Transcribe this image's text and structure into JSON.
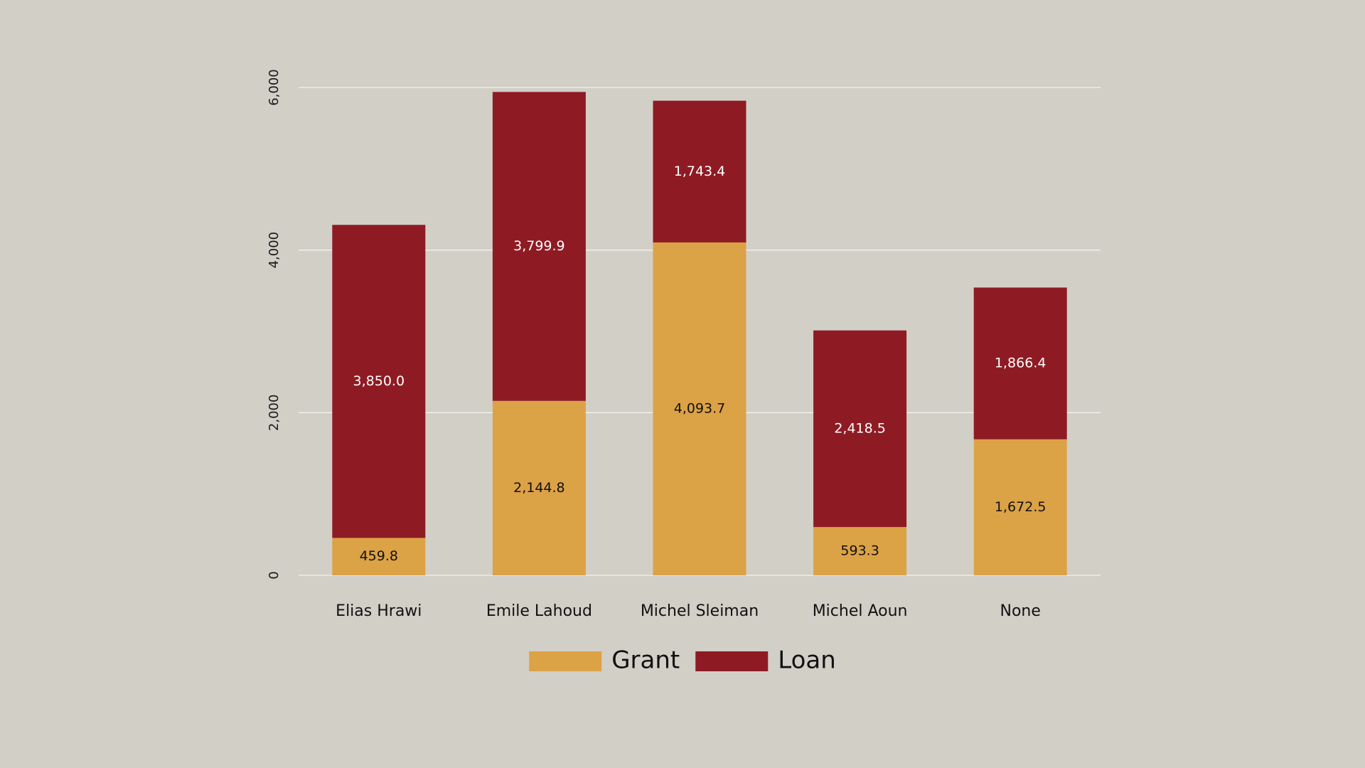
{
  "chart_data": {
    "type": "bar",
    "stacked": true,
    "categories": [
      "Elias Hrawi",
      "Emile Lahoud",
      "Michel Sleiman",
      "Michel Aoun",
      "None"
    ],
    "series": [
      {
        "name": "Grant",
        "color": "#DCA246",
        "label_color": "#111111",
        "values": [
          459.8,
          2144.8,
          4093.7,
          593.3,
          1672.5
        ],
        "labels": [
          "459.8",
          "2,144.8",
          "4,093.7",
          "593.3",
          "1,672.5"
        ]
      },
      {
        "name": "Loan",
        "color": "#8E1B23",
        "label_color": "#FFFFFF",
        "values": [
          3850.0,
          3799.9,
          1743.4,
          2418.5,
          1866.4
        ],
        "labels": [
          "3,850.0",
          "3,799.9",
          "1,743.4",
          "2,418.5",
          "1,866.4"
        ]
      }
    ],
    "ylim": [
      0,
      6000
    ],
    "yticks": [
      0,
      2000,
      4000,
      6000
    ],
    "ytick_labels": [
      "0",
      "2,000",
      "4,000",
      "6,000"
    ],
    "grid": true,
    "legend_position": "bottom-center",
    "title": "",
    "xlabel": "",
    "ylabel": ""
  }
}
